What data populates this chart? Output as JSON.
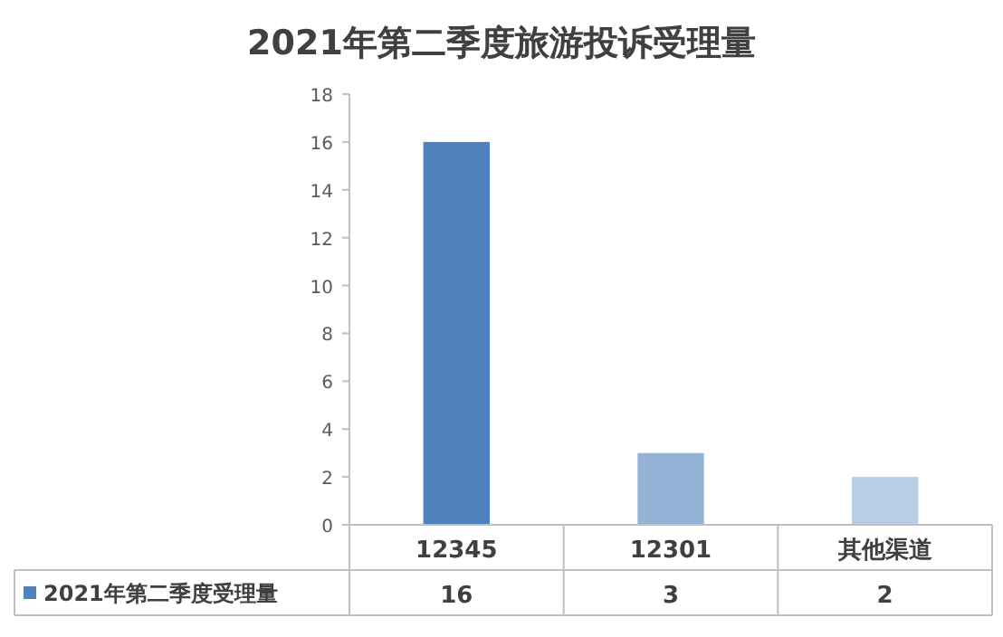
{
  "chart_data": {
    "type": "bar",
    "title": "2021年第二季度旅游投诉受理量",
    "categories": [
      "12345",
      "12301",
      "其他渠道"
    ],
    "series": [
      {
        "name": "2021年第二季度受理量",
        "color": "#4f81bd",
        "colors": [
          "#4f81bd",
          "#95b3d7",
          "#b9cde5"
        ],
        "values": [
          16,
          3,
          2
        ]
      }
    ],
    "ylim": [
      0,
      18
    ],
    "yticks": [
      0,
      2,
      4,
      6,
      8,
      10,
      12,
      14,
      16,
      18
    ],
    "data_labels": true,
    "legend": "bottom",
    "grid": false
  }
}
